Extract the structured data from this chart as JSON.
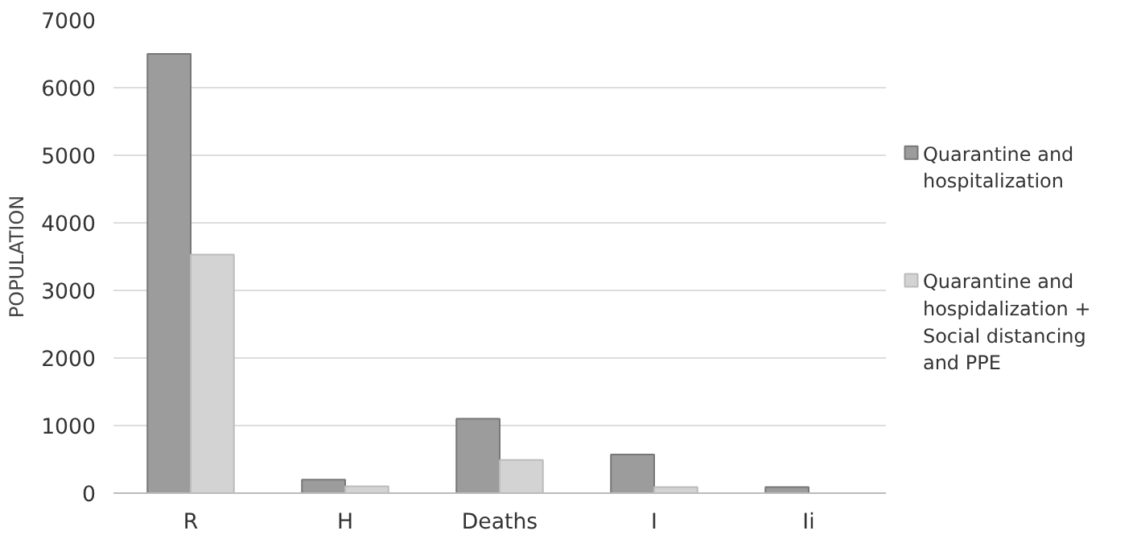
{
  "chart_data": {
    "type": "bar",
    "ylabel": "POPULATION",
    "categories": [
      "R",
      "H",
      "Deaths",
      "I",
      "Ii"
    ],
    "series": [
      {
        "name": "Quarantine and hospitalization",
        "color": "#9c9c9c",
        "values": [
          6500,
          200,
          1100,
          570,
          90
        ]
      },
      {
        "name": "Quarantine and hospidalization + Social distancing and PPE",
        "color": "#d3d3d3",
        "values": [
          3530,
          100,
          490,
          90,
          null
        ]
      }
    ],
    "ylim": [
      0,
      7000
    ],
    "yticks": [
      0,
      1000,
      2000,
      3000,
      4000,
      5000,
      6000,
      7000
    ],
    "grid": "y",
    "legend": "right"
  }
}
